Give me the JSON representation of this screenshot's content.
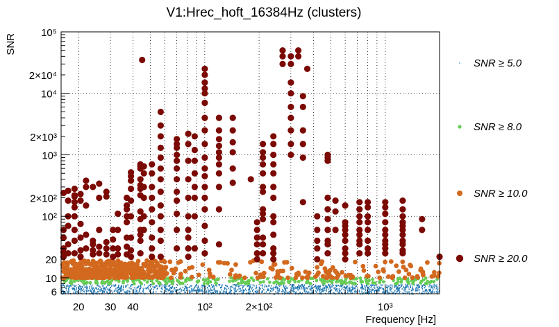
{
  "chart_data": {
    "type": "scatter",
    "title": "V1:Hrec_hoft_16384Hz (clusters)",
    "xlabel": "Frequency [Hz]",
    "ylabel": "SNR",
    "xscale": "log",
    "yscale": "log",
    "xlim": [
      16,
      2000
    ],
    "ylim": [
      5.5,
      100000
    ],
    "grid": true,
    "legend_position": "right",
    "x_tick_labels": [
      {
        "value": 20,
        "text": "20"
      },
      {
        "value": 30,
        "text": "30"
      },
      {
        "value": 40,
        "text": "40"
      },
      {
        "value": 100,
        "text": "10²"
      },
      {
        "value": 200,
        "text": "2×10²"
      },
      {
        "value": 1000,
        "text": "10³"
      }
    ],
    "y_tick_labels": [
      {
        "value": 6,
        "text": "6"
      },
      {
        "value": 10,
        "text": "10"
      },
      {
        "value": 20,
        "text": "20"
      },
      {
        "value": 100,
        "text": "10²"
      },
      {
        "value": 200,
        "text": "2×10²"
      },
      {
        "value": 1000,
        "text": "10³"
      },
      {
        "value": 2000,
        "text": "2×10³"
      },
      {
        "value": 10000,
        "text": "10⁴"
      },
      {
        "value": 20000,
        "text": "2×10⁴"
      },
      {
        "value": 100000,
        "text": "10⁵"
      }
    ],
    "series": [
      {
        "name": "SNR ≥ 5.0",
        "color": "#1f77b4",
        "marker": "dot",
        "threshold": 5.0
      },
      {
        "name": "SNR ≥ 8.0",
        "color": "#66cc55",
        "marker": "small-circle",
        "threshold": 8.0
      },
      {
        "name": "SNR ≥ 10.0",
        "color": "#d2691e",
        "marker": "circle",
        "threshold": 10.0
      },
      {
        "name": "SNR ≥ 20.0",
        "color": "#7b0a04",
        "marker": "large-circle",
        "threshold": 20.0
      }
    ],
    "clusters_snr20": [
      {
        "x": 16.5,
        "y": [
          22,
          26,
          30,
          45,
          60,
          240
        ]
      },
      {
        "x": 17.5,
        "y": [
          25,
          35,
          70,
          100,
          180,
          260
        ]
      },
      {
        "x": 19,
        "y": [
          25,
          40,
          60,
          100,
          140,
          170,
          210,
          220,
          280
        ]
      },
      {
        "x": 20.5,
        "y": [
          22,
          28,
          45,
          75,
          180,
          230
        ]
      },
      {
        "x": 22,
        "y": [
          30,
          50,
          150,
          300,
          380
        ]
      },
      {
        "x": 24,
        "y": [
          24,
          28,
          35,
          40,
          300
        ]
      },
      {
        "x": 26,
        "y": [
          25,
          32,
          60,
          200,
          340
        ]
      },
      {
        "x": 28.5,
        "y": [
          24,
          30,
          38,
          210,
          250
        ]
      },
      {
        "x": 31,
        "y": [
          22,
          30,
          42,
          60
        ]
      },
      {
        "x": 33,
        "y": [
          24,
          30,
          60,
          110
        ]
      },
      {
        "x": 37,
        "y": [
          24,
          32,
          45,
          80,
          100,
          130,
          150,
          200
        ]
      },
      {
        "x": 39,
        "y": [
          22,
          28,
          45,
          100,
          180,
          280,
          380,
          450,
          520
        ]
      },
      {
        "x": 44,
        "y": [
          25,
          40,
          50,
          60,
          90,
          120,
          220,
          280,
          320,
          400,
          600,
          650,
          700
        ]
      },
      {
        "x": 46,
        "y": [
          60,
          100,
          200,
          300,
          500,
          650
        ]
      },
      {
        "x": 45,
        "y": [
          35000
        ]
      },
      {
        "x": 51,
        "y": [
          22,
          30,
          45,
          80,
          130,
          200,
          300,
          500,
          700
        ]
      },
      {
        "x": 57,
        "y": [
          22,
          40,
          60,
          100,
          150,
          250,
          400,
          600,
          900,
          1300,
          2000,
          3000,
          5000
        ]
      },
      {
        "x": 70,
        "y": [
          30,
          60,
          110,
          180,
          250,
          400,
          600,
          800,
          1000,
          1300,
          1500,
          1800
        ]
      },
      {
        "x": 81,
        "y": [
          22,
          30,
          45,
          60,
          100,
          200,
          400,
          800,
          1500,
          2200
        ]
      },
      {
        "x": 88,
        "y": [
          30,
          100,
          200,
          300,
          500,
          800,
          1200,
          2000
        ]
      },
      {
        "x": 100,
        "y": [
          25,
          40,
          70,
          130,
          200,
          300,
          450,
          600,
          900,
          1500,
          2500,
          4000,
          7000,
          10000,
          12000,
          15000,
          20000,
          25000
        ]
      },
      {
        "x": 120,
        "y": [
          35,
          130,
          300,
          500,
          700,
          900,
          1100,
          1400,
          1800,
          2500,
          4000
        ]
      },
      {
        "x": 143,
        "y": [
          350,
          600,
          1100,
          1600,
          2500,
          4000
        ]
      },
      {
        "x": 180,
        "y": [
          400
        ]
      },
      {
        "x": 195,
        "y": [
          20,
          25,
          35,
          45,
          60,
          80
        ]
      },
      {
        "x": 210,
        "y": [
          25,
          35,
          45,
          90,
          110,
          130,
          250,
          300,
          500,
          700,
          900,
          1100,
          1500
        ]
      },
      {
        "x": 240,
        "y": [
          20,
          25,
          30,
          50,
          80,
          100,
          200,
          300,
          500,
          700,
          1000,
          1500,
          2000
        ]
      },
      {
        "x": 270,
        "y": [
          30000,
          40000,
          50000
        ]
      },
      {
        "x": 300,
        "y": [
          1000,
          1500,
          2500,
          4000,
          6000,
          10000,
          15000,
          30000,
          40000
        ]
      },
      {
        "x": 330,
        "y": [
          40000,
          50000
        ]
      },
      {
        "x": 350,
        "y": [
          170,
          900,
          1500,
          2500,
          6000,
          9000
        ]
      },
      {
        "x": 370,
        "y": [
          25000
        ]
      },
      {
        "x": 420,
        "y": [
          20,
          30,
          40,
          60,
          100
        ]
      },
      {
        "x": 480,
        "y": [
          25,
          35,
          40,
          60,
          90,
          130,
          200,
          800,
          900,
          1000
        ]
      },
      {
        "x": 530,
        "y": [
          60,
          120,
          180
        ]
      },
      {
        "x": 600,
        "y": [
          20,
          25,
          30,
          40,
          50,
          60,
          70,
          80,
          150
        ]
      },
      {
        "x": 720,
        "y": [
          25,
          35,
          40,
          50,
          60,
          80,
          100,
          130,
          170
        ]
      },
      {
        "x": 800,
        "y": [
          25,
          30,
          40,
          60,
          80,
          100,
          140,
          170
        ]
      },
      {
        "x": 1000,
        "y": [
          25,
          30,
          35,
          40,
          50,
          60,
          80,
          110,
          140,
          170
        ]
      },
      {
        "x": 1250,
        "y": [
          25,
          28,
          35,
          40,
          50,
          60,
          70,
          80,
          100,
          130,
          180
        ]
      },
      {
        "x": 1600,
        "y": [
          60,
          90
        ]
      },
      {
        "x": 2000,
        "y": [
          22
        ]
      }
    ],
    "band_snr10": {
      "x_range": [
        16,
        2000
      ],
      "y_range": [
        10,
        20
      ]
    },
    "band_snr8": {
      "x_range": [
        16,
        2000
      ],
      "y_range": [
        8,
        10
      ]
    },
    "band_snr5": {
      "x_range": [
        16,
        2000
      ],
      "y_range": [
        5.5,
        8
      ]
    }
  }
}
